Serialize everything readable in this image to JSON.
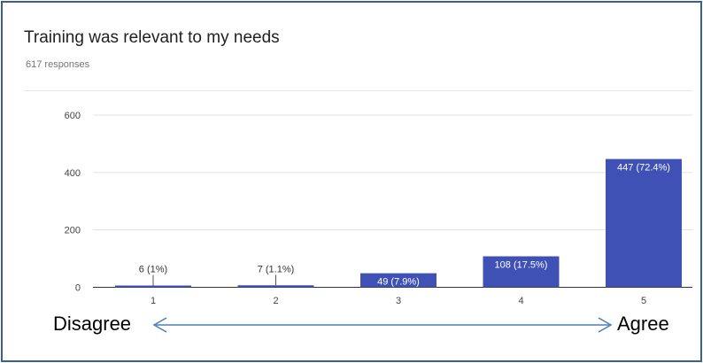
{
  "chart_data": {
    "type": "bar",
    "title": "Training was relevant to my needs",
    "subtitle": "617 responses",
    "categories": [
      "1",
      "2",
      "3",
      "4",
      "5"
    ],
    "values": [
      6,
      7,
      49,
      108,
      447
    ],
    "data_labels": [
      "6 (1%)",
      "7 (1.1%)",
      "49 (7.9%)",
      "108 (17.5%)",
      "447 (72.4%)"
    ],
    "yticks": [
      0,
      200,
      400,
      600
    ],
    "ylim": [
      0,
      600
    ],
    "grid": true,
    "bar_color": "#3f51b5"
  },
  "annotations": {
    "left_label": "Disagree",
    "right_label": "Agree",
    "arrow_color": "#4a7ebb"
  }
}
